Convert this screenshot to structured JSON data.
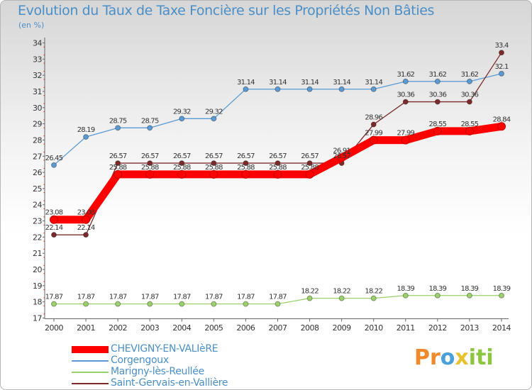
{
  "title": "Evolution du Taux de Taxe Foncière sur les Propriétés Non Bâties",
  "unit": "(en %)",
  "logo": {
    "text": "Proxiti",
    "letters": [
      {
        "ch": "P",
        "color": "#f0892a"
      },
      {
        "ch": "r",
        "color": "#f0892a"
      },
      {
        "ch": "o",
        "color": "#4aa0d8"
      },
      {
        "ch": "x",
        "color": "#e8c22e"
      },
      {
        "ch": "i",
        "color": "#8cc63f"
      },
      {
        "ch": "t",
        "color": "#8cc63f"
      },
      {
        "ch": "i",
        "color": "#8cc63f"
      }
    ]
  },
  "chart_data": {
    "type": "line",
    "title": "Evolution du Taux de Taxe Foncière sur les Propriétés Non Bâties",
    "ylabel": "(en %)",
    "xlabel": "",
    "x": [
      "2000",
      "2001",
      "2002",
      "2003",
      "2004",
      "2005",
      "2006",
      "2007",
      "2008",
      "2009",
      "2010",
      "2011",
      "2012",
      "2013",
      "2014"
    ],
    "ylim": [
      17,
      34
    ],
    "yticks": [
      "17",
      "18",
      "19",
      "20",
      "21",
      "22",
      "23",
      "24",
      "25",
      "26",
      "27",
      "28",
      "29",
      "30",
      "31",
      "32",
      "33",
      "34"
    ],
    "grid": false,
    "legend_position": "bottom-left",
    "series": [
      {
        "name": "Corgengoux",
        "color": "#5b9bd5",
        "values": [
          26.45,
          28.19,
          28.75,
          28.75,
          29.32,
          29.32,
          31.14,
          31.14,
          31.14,
          31.14,
          31.14,
          31.62,
          31.62,
          31.62,
          32.1
        ],
        "labels": [
          "26.45",
          "28.19",
          "28.75",
          "28.75",
          "29.32",
          "29.32",
          "31.14",
          "31.14",
          "31.14",
          "31.14",
          "31.14",
          "31.62",
          "31.62",
          "31.62",
          "32.1"
        ]
      },
      {
        "name": "Marigny-lès-Reullée",
        "color": "#9bd16a",
        "values": [
          17.87,
          17.87,
          17.87,
          17.87,
          17.87,
          17.87,
          17.87,
          17.87,
          18.22,
          18.22,
          18.22,
          18.39,
          18.39,
          18.39,
          18.39
        ],
        "labels": [
          "17.87",
          "17.87",
          "17.87",
          "17.87",
          "17.87",
          "17.87",
          "17.87",
          "17.87",
          "18.22",
          "18.22",
          "18.22",
          "18.39",
          "18.39",
          "18.39",
          "18.39"
        ]
      },
      {
        "name": "Saint-Gervais-en-Vallière",
        "color": "#7d2a2a",
        "values": [
          22.14,
          22.14,
          26.57,
          26.57,
          26.57,
          26.57,
          26.57,
          26.57,
          26.57,
          26.57,
          28.96,
          30.36,
          30.36,
          30.36,
          33.4
        ],
        "labels": [
          "22.14",
          "22.14",
          "26.57",
          "26.57",
          "26.57",
          "26.57",
          "26.57",
          "26.57",
          "26.57",
          "26.57",
          "28.96",
          "30.36",
          "30.36",
          "30.36",
          "33.4"
        ]
      },
      {
        "name": "CHEVIGNY-EN-VALIèRE",
        "color": "#ff0000",
        "values": [
          23.08,
          23.08,
          25.88,
          25.88,
          25.88,
          25.88,
          25.88,
          25.88,
          25.88,
          26.91,
          27.99,
          27.99,
          28.55,
          28.55,
          28.84
        ],
        "labels": [
          "23.08",
          "23.08",
          "25.88",
          "25.88",
          "25.88",
          "25.88",
          "25.88",
          "25.88",
          "25.88",
          "26.91",
          "27.99",
          "27.99",
          "28.55",
          "28.55",
          "28.84"
        ]
      }
    ]
  },
  "legend": [
    {
      "name": "CHEVIGNY-EN-VALIèRE",
      "color": "#ff0000"
    },
    {
      "name": "Corgengoux",
      "color": "#5b9bd5"
    },
    {
      "name": "Marigny-lès-Reullée",
      "color": "#9bd16a"
    },
    {
      "name": "Saint-Gervais-en-Vallière",
      "color": "#7d2a2a"
    }
  ]
}
